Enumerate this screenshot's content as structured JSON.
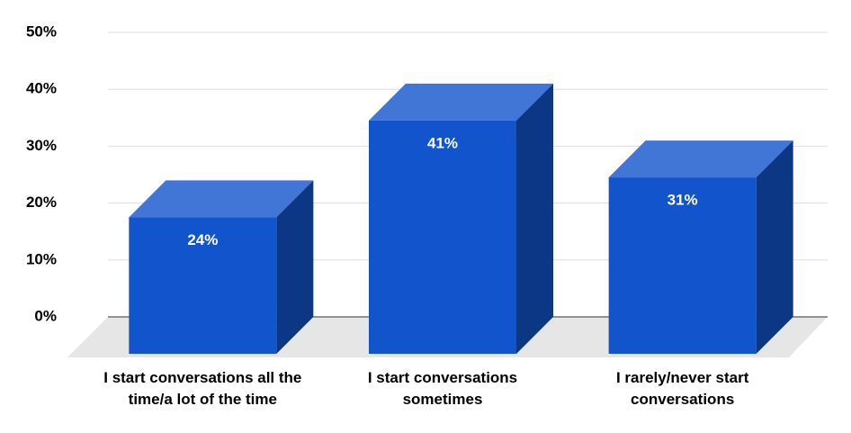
{
  "chart_data": {
    "type": "bar3d",
    "categories": [
      "I start conversations all the time/a lot of the time",
      "I start conversations sometimes",
      "I rarely/never start conversations"
    ],
    "values": [
      24,
      41,
      31
    ],
    "value_labels": [
      "24%",
      "41%",
      "31%"
    ],
    "color": "#1254cc",
    "ylim": [
      0,
      50
    ],
    "yticks": [
      {
        "value": 0,
        "label": "0%"
      },
      {
        "value": 10,
        "label": "10%"
      },
      {
        "value": 20,
        "label": "20%"
      },
      {
        "value": 30,
        "label": "30%"
      },
      {
        "value": 40,
        "label": "40%"
      },
      {
        "value": 50,
        "label": "50%"
      }
    ],
    "grid": true
  }
}
